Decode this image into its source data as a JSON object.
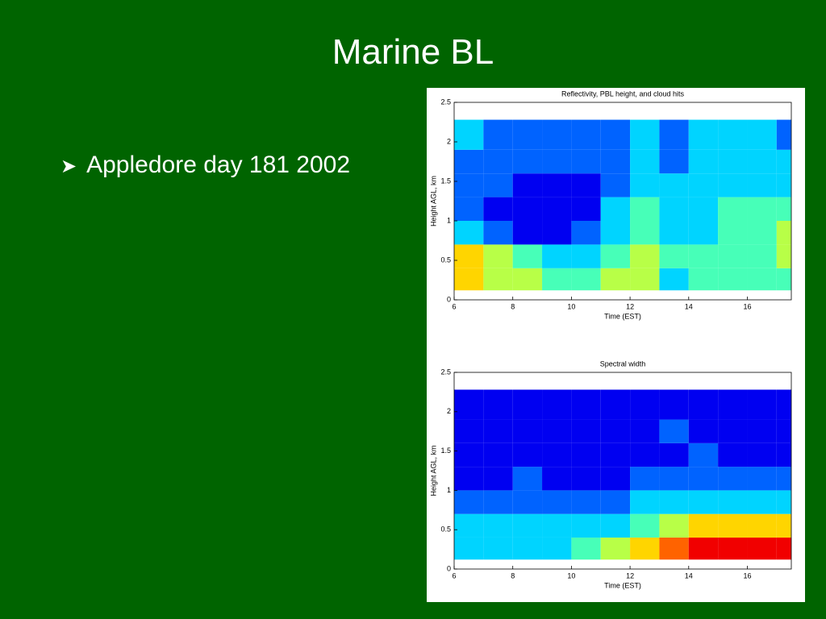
{
  "title": "Marine BL",
  "bullets": [
    "Appledore day 181 2002"
  ],
  "chart_data": [
    {
      "type": "heatmap",
      "title": "Reflectivity, PBL height, and cloud hits",
      "xlabel": "Time (EST)",
      "ylabel": "Height AGL, km",
      "xlim": [
        6,
        17.5
      ],
      "ylim": [
        0,
        2.5
      ],
      "xticks": [
        6,
        8,
        10,
        12,
        14,
        16
      ],
      "yticks": [
        0,
        0.5,
        1,
        1.5,
        2,
        2.5
      ],
      "colormap": "jet",
      "zlim": [
        0,
        9
      ],
      "x_edges": [
        6,
        7,
        8,
        9,
        10,
        11,
        12,
        13,
        14,
        15,
        16,
        17,
        17.5
      ],
      "y_edges": [
        0.12,
        0.4,
        0.7,
        1.0,
        1.3,
        1.6,
        1.9,
        2.28
      ],
      "z": [
        [
          6,
          5,
          5,
          4,
          4,
          5,
          5,
          3,
          4,
          4,
          4,
          4
        ],
        [
          6,
          5,
          4,
          3,
          3,
          4,
          5,
          4,
          4,
          4,
          4,
          5
        ],
        [
          3,
          2,
          1,
          1,
          2,
          3,
          4,
          3,
          3,
          4,
          4,
          5
        ],
        [
          2,
          1,
          1,
          1,
          1,
          3,
          4,
          3,
          3,
          4,
          4,
          4
        ],
        [
          2,
          2,
          1,
          1,
          1,
          2,
          3,
          3,
          3,
          3,
          3,
          3
        ],
        [
          2,
          2,
          2,
          2,
          2,
          2,
          3,
          2,
          3,
          3,
          3,
          3
        ],
        [
          3,
          2,
          2,
          2,
          2,
          2,
          3,
          2,
          3,
          3,
          3,
          2
        ]
      ]
    },
    {
      "type": "heatmap",
      "title": "Spectral width",
      "xlabel": "Time (EST)",
      "ylabel": "Height AGL, km",
      "xlim": [
        6,
        17.5
      ],
      "ylim": [
        0,
        2.5
      ],
      "xticks": [
        6,
        8,
        10,
        12,
        14,
        16
      ],
      "yticks": [
        0,
        0.5,
        1,
        1.5,
        2,
        2.5
      ],
      "colormap": "jet",
      "zlim": [
        0,
        9
      ],
      "x_edges": [
        6,
        7,
        8,
        9,
        10,
        11,
        12,
        13,
        14,
        15,
        16,
        17,
        17.5
      ],
      "y_edges": [
        0.12,
        0.4,
        0.7,
        1.0,
        1.3,
        1.6,
        1.9,
        2.28
      ],
      "z": [
        [
          3,
          3,
          3,
          3,
          4,
          5,
          6,
          7,
          8,
          8,
          8,
          8
        ],
        [
          3,
          3,
          3,
          3,
          3,
          3,
          4,
          5,
          6,
          6,
          6,
          6
        ],
        [
          2,
          2,
          2,
          2,
          2,
          2,
          3,
          3,
          3,
          3,
          3,
          3
        ],
        [
          1,
          1,
          2,
          1,
          1,
          1,
          2,
          2,
          2,
          2,
          2,
          2
        ],
        [
          1,
          1,
          1,
          1,
          1,
          1,
          1,
          1,
          2,
          1,
          1,
          1
        ],
        [
          1,
          1,
          1,
          1,
          1,
          1,
          1,
          2,
          1,
          1,
          1,
          1
        ],
        [
          1,
          1,
          1,
          1,
          1,
          1,
          1,
          1,
          1,
          1,
          1,
          1
        ]
      ]
    }
  ]
}
